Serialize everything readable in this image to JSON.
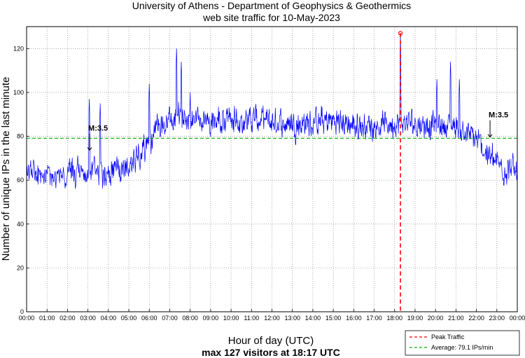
{
  "chart_data": {
    "type": "line",
    "title": "University of Athens - Department of Geophysics & Geothermics",
    "subtitle": "web site traffic for 10-May-2023",
    "xlabel": "Hour of day (UTC)",
    "xlabel_sub": "max 127 visitors at 18:17 UTC",
    "ylabel": "Number of unique IPs in the last minute",
    "x_unit": "minutes since 00:00 UTC",
    "xlim": [
      0,
      1440
    ],
    "ylim": [
      0,
      130
    ],
    "yticks": [
      0,
      20,
      40,
      60,
      80,
      100,
      120
    ],
    "xtick_labels": [
      "00:00",
      "01:00",
      "02:00",
      "03:00",
      "04:00",
      "05:00",
      "06:00",
      "07:00",
      "08:00",
      "09:00",
      "10:00",
      "11:00",
      "12:00",
      "13:00",
      "14:00",
      "15:00",
      "16:00",
      "17:00",
      "18:00",
      "19:00",
      "20:00",
      "21:00",
      "22:00",
      "23:00",
      "00:00"
    ],
    "grid": true,
    "series": [
      {
        "name": "traffic",
        "color": "#0000ff",
        "hour_levels": [
          64,
          62,
          62,
          63,
          64,
          66,
          79,
          87,
          89,
          88,
          87,
          88,
          86,
          86,
          86,
          87,
          85,
          85,
          86,
          86,
          85,
          85,
          78,
          67,
          64
        ]
      }
    ],
    "peak": {
      "time": "18:17",
      "minute": 1097,
      "value": 127
    },
    "average": {
      "value": 79.1
    },
    "annotations": [
      {
        "text": "M:3.5",
        "time": "03:05",
        "minute": 185,
        "arrow_to": 73
      },
      {
        "text": "M:3.5",
        "time": "22:40",
        "minute": 1360,
        "arrow_to": 79
      }
    ],
    "legend": {
      "position": "bottom-right",
      "entries": [
        {
          "label": "Peak Traffic",
          "color": "#ff0000",
          "style": "dashed"
        },
        {
          "label": "Average: 79.1 IPs/min",
          "color": "#00aa00",
          "style": "dashed"
        }
      ]
    }
  }
}
